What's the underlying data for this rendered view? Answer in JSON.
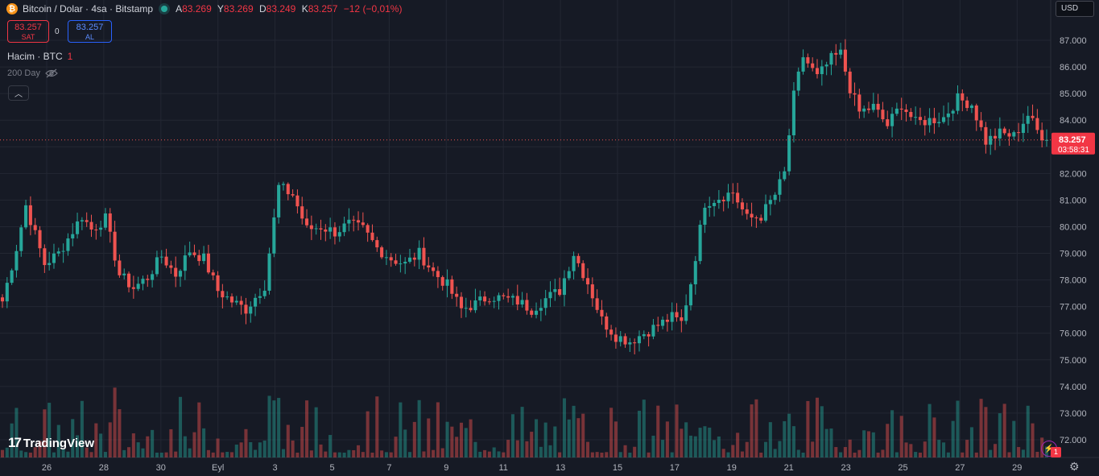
{
  "header": {
    "coin_symbol": "₿",
    "title": "Bitcoin / Dolar · 4sa · Bitstamp",
    "ohlc": [
      {
        "key": "A",
        "value": "83.269"
      },
      {
        "key": "Y",
        "value": "83.269"
      },
      {
        "key": "D",
        "value": "83.249"
      },
      {
        "key": "K",
        "value": "83.257"
      }
    ],
    "change": "−12 (−0,01%)"
  },
  "trade": {
    "sell_price": "83.257",
    "sell_label": "SAT",
    "spread": "0",
    "buy_price": "83.257",
    "buy_label": "AL"
  },
  "volume_indicator": {
    "label": "Hacim · BTC",
    "value": "1"
  },
  "ma_indicator": {
    "label": "200 Day"
  },
  "currency": "USD",
  "logo_text": "TradingView",
  "flash_badge": "1",
  "price_label": {
    "price": "83.257",
    "countdown": "03:58:31"
  },
  "colors": {
    "up": "#26a69a",
    "down": "#ef5350",
    "bg": "#161a25",
    "grid": "#232733"
  },
  "chart_data": {
    "type": "candlestick",
    "title": "Bitcoin / Dolar · 4sa · Bitstamp",
    "y_axis_ticks": [
      "87.000",
      "86.000",
      "85.000",
      "84.000",
      "83.000",
      "82.000",
      "81.000",
      "80.000",
      "79.000",
      "78.000",
      "77.000",
      "76.000",
      "75.000",
      "74.000",
      "73.000",
      "72.000"
    ],
    "y_tick_values": [
      87000,
      86000,
      85000,
      84000,
      83000,
      82000,
      81000,
      80000,
      79000,
      78000,
      77000,
      76000,
      75000,
      74000,
      73000,
      72000
    ],
    "x_axis_ticks": [
      "26",
      "28",
      "30",
      "Eyl",
      "3",
      "5",
      "7",
      "9",
      "11",
      "13",
      "15",
      "17",
      "19",
      "21",
      "23",
      "25",
      "27",
      "29"
    ],
    "last_price": 83257,
    "price_anchors": [
      {
        "i": 0,
        "p": 77200
      },
      {
        "i": 3,
        "p": 79200
      },
      {
        "i": 5,
        "p": 80800
      },
      {
        "i": 9,
        "p": 78600
      },
      {
        "i": 12,
        "p": 79000
      },
      {
        "i": 17,
        "p": 80400
      },
      {
        "i": 19,
        "p": 79900
      },
      {
        "i": 22,
        "p": 80300
      },
      {
        "i": 25,
        "p": 78200
      },
      {
        "i": 28,
        "p": 77700
      },
      {
        "i": 31,
        "p": 78100
      },
      {
        "i": 34,
        "p": 78900
      },
      {
        "i": 37,
        "p": 78200
      },
      {
        "i": 40,
        "p": 79100
      },
      {
        "i": 43,
        "p": 78800
      },
      {
        "i": 46,
        "p": 77600
      },
      {
        "i": 49,
        "p": 77200
      },
      {
        "i": 52,
        "p": 76900
      },
      {
        "i": 56,
        "p": 77800
      },
      {
        "i": 59,
        "p": 81500
      },
      {
        "i": 62,
        "p": 81200
      },
      {
        "i": 65,
        "p": 79900
      },
      {
        "i": 68,
        "p": 80000
      },
      {
        "i": 71,
        "p": 79800
      },
      {
        "i": 74,
        "p": 80100
      },
      {
        "i": 77,
        "p": 79900
      },
      {
        "i": 80,
        "p": 79200
      },
      {
        "i": 83,
        "p": 78800
      },
      {
        "i": 86,
        "p": 78600
      },
      {
        "i": 89,
        "p": 79000
      },
      {
        "i": 92,
        "p": 78300
      },
      {
        "i": 95,
        "p": 77800
      },
      {
        "i": 98,
        "p": 76900
      },
      {
        "i": 101,
        "p": 77100
      },
      {
        "i": 104,
        "p": 77400
      },
      {
        "i": 107,
        "p": 77300
      },
      {
        "i": 110,
        "p": 77200
      },
      {
        "i": 113,
        "p": 76900
      },
      {
        "i": 116,
        "p": 77300
      },
      {
        "i": 119,
        "p": 77600
      },
      {
        "i": 122,
        "p": 79000
      },
      {
        "i": 125,
        "p": 77900
      },
      {
        "i": 128,
        "p": 76500
      },
      {
        "i": 131,
        "p": 75900
      },
      {
        "i": 134,
        "p": 75700
      },
      {
        "i": 137,
        "p": 76000
      },
      {
        "i": 140,
        "p": 76300
      },
      {
        "i": 143,
        "p": 76600
      },
      {
        "i": 145,
        "p": 76400
      },
      {
        "i": 147,
        "p": 77900
      },
      {
        "i": 150,
        "p": 80900
      },
      {
        "i": 153,
        "p": 81100
      },
      {
        "i": 156,
        "p": 81300
      },
      {
        "i": 159,
        "p": 80300
      },
      {
        "i": 162,
        "p": 80400
      },
      {
        "i": 165,
        "p": 81200
      },
      {
        "i": 167,
        "p": 82000
      },
      {
        "i": 169,
        "p": 84900
      },
      {
        "i": 171,
        "p": 86400
      },
      {
        "i": 174,
        "p": 85600
      },
      {
        "i": 177,
        "p": 86300
      },
      {
        "i": 179,
        "p": 86500
      },
      {
        "i": 181,
        "p": 85200
      },
      {
        "i": 183,
        "p": 84300
      },
      {
        "i": 186,
        "p": 84500
      },
      {
        "i": 189,
        "p": 83800
      },
      {
        "i": 192,
        "p": 84600
      },
      {
        "i": 195,
        "p": 83900
      },
      {
        "i": 198,
        "p": 84000
      },
      {
        "i": 201,
        "p": 84100
      },
      {
        "i": 204,
        "p": 84800
      },
      {
        "i": 207,
        "p": 84600
      },
      {
        "i": 210,
        "p": 83200
      },
      {
        "i": 213,
        "p": 83500
      },
      {
        "i": 216,
        "p": 83400
      },
      {
        "i": 219,
        "p": 84200
      },
      {
        "i": 221,
        "p": 83600
      },
      {
        "i": 223,
        "p": 83257
      }
    ],
    "volume_scale_note": "volume bars shown as relative heights",
    "volume_max_btc": 4.3
  }
}
